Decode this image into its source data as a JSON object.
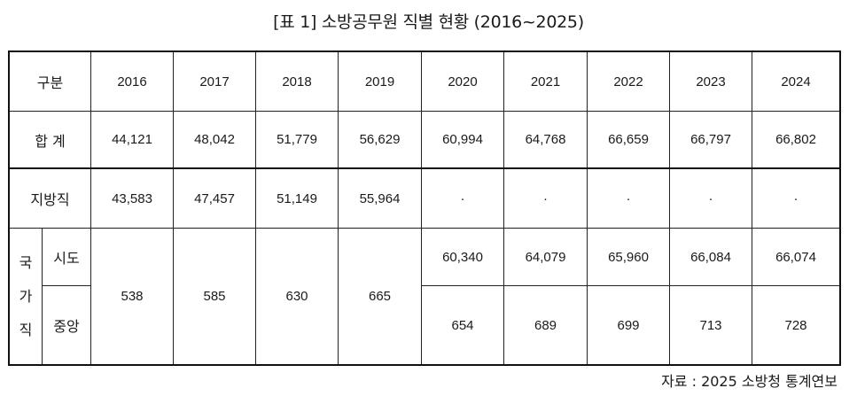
{
  "caption": "[표 1] 소방공무원 직별 현황 (2016~2025)",
  "header": {
    "category": "구분",
    "years": [
      "2016",
      "2017",
      "2018",
      "2019",
      "2020",
      "2021",
      "2022",
      "2023",
      "2024"
    ]
  },
  "rows": {
    "total": {
      "label": "합 계",
      "values": [
        "44,121",
        "48,042",
        "51,779",
        "56,629",
        "60,994",
        "64,768",
        "66,659",
        "66,797",
        "66,802"
      ]
    },
    "local": {
      "label": "지방직",
      "values": [
        "43,583",
        "47,457",
        "51,149",
        "55,964",
        "·",
        "·",
        "·",
        "·",
        "·"
      ]
    },
    "national": {
      "label_chars": [
        "국",
        "가",
        "직"
      ],
      "merged_label": "",
      "merged_values": [
        "538",
        "585",
        "630",
        "665"
      ],
      "sido": {
        "label": "시도",
        "values": [
          "60,340",
          "64,079",
          "65,960",
          "66,084",
          "66,074"
        ]
      },
      "central": {
        "label": "중앙",
        "values": [
          "654",
          "689",
          "699",
          "713",
          "728"
        ]
      }
    }
  },
  "source": "자료 : 2025 소방청 통계연보"
}
